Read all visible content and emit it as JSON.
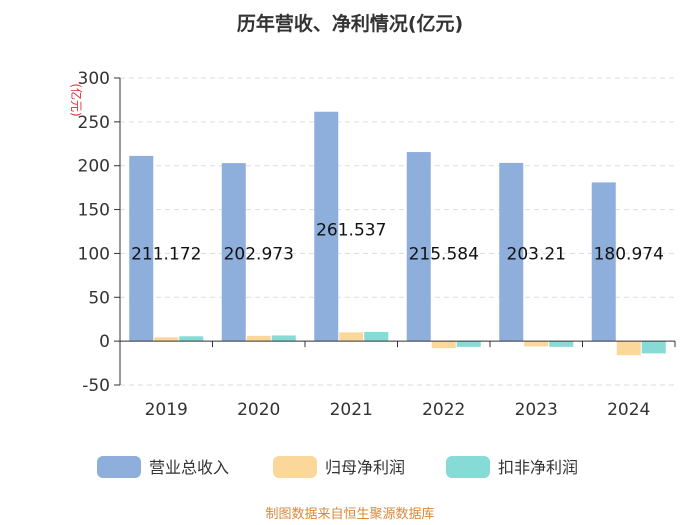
{
  "chart_data": {
    "type": "bar",
    "title": "历年营收、净利情况(亿元)",
    "ylabel": "(亿元)",
    "xlabel": "",
    "categories": [
      "2019",
      "2020",
      "2021",
      "2022",
      "2023",
      "2024"
    ],
    "ylim": [
      -50,
      300
    ],
    "yticks": [
      -50,
      0,
      50,
      100,
      150,
      200,
      250,
      300
    ],
    "grid": true,
    "legend_position": "bottom",
    "series": [
      {
        "name": "营业总收入",
        "color": "#8eaedc",
        "values": [
          211.172,
          202.973,
          261.537,
          215.584,
          203.21,
          180.974
        ],
        "labels": [
          "211.172",
          "202.973",
          "261.537",
          "215.584",
          "203.21",
          "180.974"
        ]
      },
      {
        "name": "归母净利润",
        "color": "#fbd89a",
        "values": [
          4.5,
          6.0,
          10.0,
          -8.0,
          -6.0,
          -16.0
        ]
      },
      {
        "name": "扣非净利润",
        "color": "#86dbd6",
        "values": [
          5.5,
          6.5,
          10.5,
          -6.5,
          -6.5,
          -14.0
        ]
      }
    ]
  },
  "source_text": "制图数据来自恒生聚源数据库"
}
